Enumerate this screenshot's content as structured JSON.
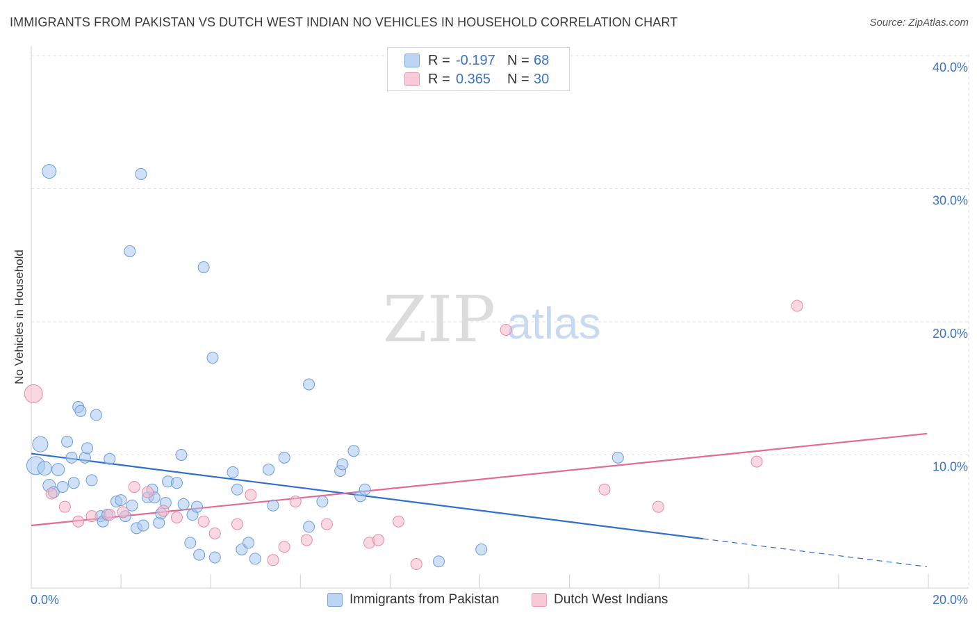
{
  "title": "IMMIGRANTS FROM PAKISTAN VS DUTCH WEST INDIAN NO VEHICLES IN HOUSEHOLD CORRELATION CHART",
  "source": "Source: ZipAtlas.com",
  "watermark": {
    "zip": "ZIP",
    "atlas": "atlas"
  },
  "legend_top": [
    {
      "r_label": "R =",
      "r_value": "-0.197",
      "n_label": "N =",
      "n_value": "68",
      "color": "#aac9f0"
    },
    {
      "r_label": "R =",
      "r_value": "0.365",
      "n_label": "N =",
      "n_value": "30",
      "color": "#f5b8ca"
    }
  ],
  "chart_data": {
    "type": "scatter",
    "xlabel": "",
    "ylabel": "No Vehicles in Household",
    "xlim": [
      0,
      20
    ],
    "ylim": [
      0,
      40
    ],
    "x_tick_labels": [
      "0.0%",
      "20.0%"
    ],
    "y_tick_labels": [
      "10.0%",
      "20.0%",
      "30.0%",
      "40.0%"
    ],
    "y_ticks": [
      10,
      20,
      30,
      40
    ],
    "grid": true,
    "legend_position": "bottom",
    "series": [
      {
        "name": "Immigrants from Pakistan",
        "color": "#aac9f0",
        "stroke": "#6a9cd8",
        "trend_color": "#2f6fce",
        "trend": {
          "x0": 0,
          "y0": 10.1,
          "x1": 15,
          "y1": 3.7,
          "dash_to_x": 20,
          "dash_to_y": 1.6
        },
        "points": [
          [
            0.1,
            9.2,
            13
          ],
          [
            0.2,
            10.8,
            11
          ],
          [
            0.3,
            9.0,
            10
          ],
          [
            0.4,
            31.3,
            10
          ],
          [
            0.4,
            7.7,
            9
          ],
          [
            0.5,
            7.2,
            8
          ],
          [
            0.6,
            8.9,
            9
          ],
          [
            0.7,
            7.6,
            8
          ],
          [
            0.8,
            11.0,
            8
          ],
          [
            0.9,
            9.8,
            8
          ],
          [
            0.95,
            7.9,
            8
          ],
          [
            1.05,
            13.6,
            8
          ],
          [
            1.1,
            13.3,
            8
          ],
          [
            1.2,
            9.8,
            8
          ],
          [
            1.25,
            10.5,
            8
          ],
          [
            1.35,
            8.1,
            8
          ],
          [
            1.45,
            13.0,
            8
          ],
          [
            1.55,
            5.4,
            8
          ],
          [
            1.6,
            5.0,
            8
          ],
          [
            1.7,
            5.5,
            8
          ],
          [
            1.75,
            9.7,
            8
          ],
          [
            1.9,
            6.5,
            8
          ],
          [
            2.0,
            6.6,
            8
          ],
          [
            2.1,
            5.4,
            8
          ],
          [
            2.2,
            25.3,
            8
          ],
          [
            2.25,
            6.2,
            8
          ],
          [
            2.35,
            4.5,
            8
          ],
          [
            2.45,
            31.1,
            8
          ],
          [
            2.5,
            4.7,
            8
          ],
          [
            2.6,
            6.8,
            8
          ],
          [
            2.7,
            7.4,
            8
          ],
          [
            2.75,
            6.8,
            8
          ],
          [
            2.85,
            4.9,
            8
          ],
          [
            2.9,
            5.6,
            8
          ],
          [
            3.0,
            6.4,
            8
          ],
          [
            3.05,
            8.0,
            8
          ],
          [
            3.25,
            7.9,
            8
          ],
          [
            3.35,
            10.0,
            8
          ],
          [
            3.4,
            6.3,
            8
          ],
          [
            3.55,
            3.4,
            8
          ],
          [
            3.6,
            5.5,
            8
          ],
          [
            3.7,
            6.1,
            8
          ],
          [
            3.75,
            2.5,
            8
          ],
          [
            3.85,
            24.1,
            8
          ],
          [
            4.05,
            17.3,
            8
          ],
          [
            4.1,
            2.3,
            8
          ],
          [
            4.5,
            8.7,
            8
          ],
          [
            4.6,
            7.4,
            8
          ],
          [
            4.7,
            2.9,
            8
          ],
          [
            4.85,
            3.4,
            8
          ],
          [
            5.0,
            2.2,
            8
          ],
          [
            5.3,
            8.9,
            8
          ],
          [
            5.4,
            6.2,
            8
          ],
          [
            5.65,
            9.8,
            8
          ],
          [
            6.2,
            15.3,
            8
          ],
          [
            6.2,
            4.6,
            8
          ],
          [
            6.5,
            6.5,
            8
          ],
          [
            6.9,
            8.8,
            8
          ],
          [
            6.95,
            9.3,
            8
          ],
          [
            7.2,
            10.3,
            8
          ],
          [
            7.35,
            6.9,
            8
          ],
          [
            7.45,
            7.4,
            8
          ],
          [
            9.1,
            2.0,
            8
          ],
          [
            10.05,
            2.9,
            8
          ],
          [
            13.1,
            9.8,
            8
          ]
        ]
      },
      {
        "name": "Dutch West Indians",
        "color": "#f5b8ca",
        "stroke": "#e58aa8",
        "trend_color": "#e36a93",
        "trend": {
          "x0": 0,
          "y0": 4.7,
          "x1": 20,
          "y1": 11.6
        },
        "points": [
          [
            0.05,
            14.6,
            13
          ],
          [
            0.45,
            7.1,
            8
          ],
          [
            0.75,
            6.1,
            8
          ],
          [
            1.05,
            5.0,
            8
          ],
          [
            1.35,
            5.4,
            8
          ],
          [
            1.75,
            5.5,
            8
          ],
          [
            2.05,
            5.7,
            8
          ],
          [
            2.3,
            7.6,
            8
          ],
          [
            2.6,
            7.2,
            8
          ],
          [
            2.95,
            5.8,
            8
          ],
          [
            3.25,
            5.3,
            8
          ],
          [
            3.85,
            5.0,
            8
          ],
          [
            4.1,
            4.1,
            8
          ],
          [
            4.6,
            4.8,
            8
          ],
          [
            4.9,
            7.0,
            8
          ],
          [
            5.4,
            2.1,
            8
          ],
          [
            5.65,
            3.1,
            8
          ],
          [
            5.9,
            6.5,
            8
          ],
          [
            6.15,
            3.6,
            8
          ],
          [
            6.6,
            4.8,
            8
          ],
          [
            7.55,
            3.4,
            8
          ],
          [
            7.75,
            3.6,
            8
          ],
          [
            8.2,
            5.0,
            8
          ],
          [
            8.6,
            1.8,
            8
          ],
          [
            10.6,
            19.4,
            8
          ],
          [
            12.8,
            7.4,
            8
          ],
          [
            14.0,
            6.1,
            8
          ],
          [
            16.2,
            9.5,
            8
          ],
          [
            17.1,
            21.2,
            8
          ]
        ]
      }
    ]
  }
}
